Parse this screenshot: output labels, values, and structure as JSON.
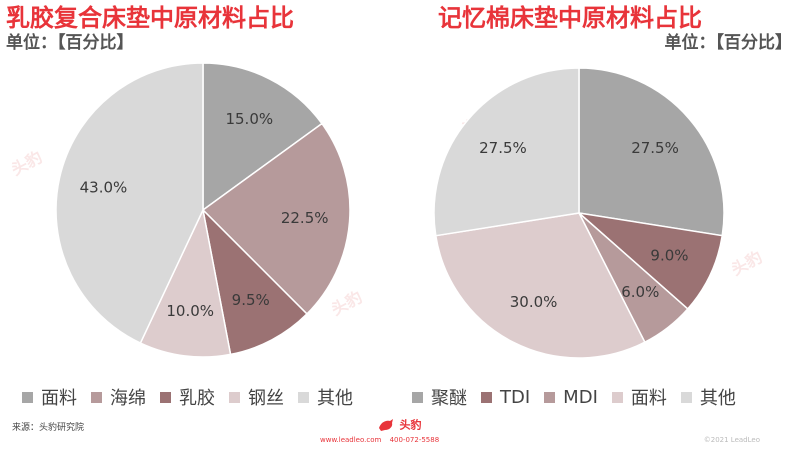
{
  "chart_data": [
    {
      "type": "pie",
      "title": "乳胶复合床垫中原材料占比",
      "unit": "单位：【百分比】",
      "slices": [
        {
          "label": "面料",
          "value": 15.0,
          "display": "15.0%",
          "color": "#a6a6a6"
        },
        {
          "label": "海绵",
          "value": 22.5,
          "display": "22.5%",
          "color": "#b69a9b"
        },
        {
          "label": "乳胶",
          "value": 9.5,
          "display": "9.5%",
          "color": "#9b7273"
        },
        {
          "label": "钢丝",
          "value": 10.0,
          "display": "10.0%",
          "color": "#ddcccd"
        },
        {
          "label": "其他",
          "value": 43.0,
          "display": "43.0%",
          "color": "#d9d9d9"
        }
      ],
      "start_angle_deg": 0,
      "direction": "clockwise",
      "legend_position": "bottom"
    },
    {
      "type": "pie",
      "title": "记忆棉床垫中原材料占比",
      "unit": "单位：【百分比】",
      "slices": [
        {
          "label": "聚醚",
          "value": 27.5,
          "display": "27.5%",
          "color": "#a6a6a6"
        },
        {
          "label": "TDI",
          "value": 9.0,
          "display": "9.0%",
          "color": "#9b7273"
        },
        {
          "label": "MDI",
          "value": 6.0,
          "display": "6.0%",
          "color": "#b69a9b"
        },
        {
          "label": "面料",
          "value": 30.0,
          "display": "30.0%",
          "color": "#ddcccd"
        },
        {
          "label": "其他",
          "value": 27.5,
          "display": "27.5%",
          "color": "#d9d9d9"
        }
      ],
      "start_angle_deg": 0,
      "direction": "clockwise",
      "legend_position": "bottom"
    }
  ],
  "footer": {
    "source": "来源：头豹研究院",
    "brand": "头豹",
    "website": "www.leadleo.com",
    "phone": "400-072-5588",
    "copyright": "©2021 LeadLeo"
  },
  "watermark": "头豹"
}
